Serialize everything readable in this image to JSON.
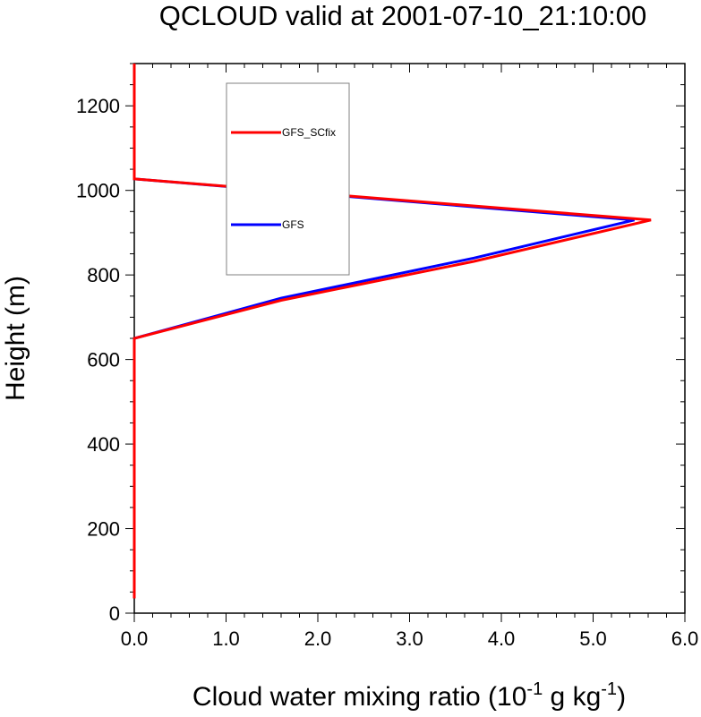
{
  "chart_data": {
    "type": "line",
    "title": "QCLOUD valid at 2001-07-10_21:10:00",
    "xlabel": {
      "main": "Cloud water mixing ratio (10",
      "sup1": "-1",
      "mid": " g kg",
      "sup2": "-1",
      "end": ")"
    },
    "ylabel": "Height (m)",
    "xlim": [
      0,
      6
    ],
    "ylim": [
      0,
      1300
    ],
    "x_ticks": [
      0,
      1,
      2,
      3,
      4,
      5,
      6
    ],
    "x_tick_labels": [
      "0.0",
      "1.0",
      "2.0",
      "3.0",
      "4.0",
      "5.0",
      "6.0"
    ],
    "y_ticks": [
      0,
      200,
      400,
      600,
      800,
      1000,
      1200
    ],
    "y_tick_labels": [
      "0",
      "200",
      "400",
      "600",
      "800",
      "1000",
      "1200"
    ],
    "legend": {
      "placement": "upper-left, inside"
    },
    "series": [
      {
        "name": "GFS",
        "color": "#0000ff",
        "points": [
          [
            0,
            35
          ],
          [
            0,
            650
          ],
          [
            1.6,
            745
          ],
          [
            3.7,
            840
          ],
          [
            5.45,
            930
          ],
          [
            0,
            1027
          ],
          [
            0,
            1300
          ]
        ]
      },
      {
        "name": "GFS_SCfix",
        "color": "#ff0000",
        "points": [
          [
            0,
            35
          ],
          [
            0,
            650
          ],
          [
            1.6,
            740
          ],
          [
            3.7,
            832
          ],
          [
            5.63,
            930
          ],
          [
            0,
            1027
          ],
          [
            0,
            1300
          ]
        ]
      }
    ],
    "legend_order": [
      "GFS_SCfix",
      "GFS"
    ]
  }
}
